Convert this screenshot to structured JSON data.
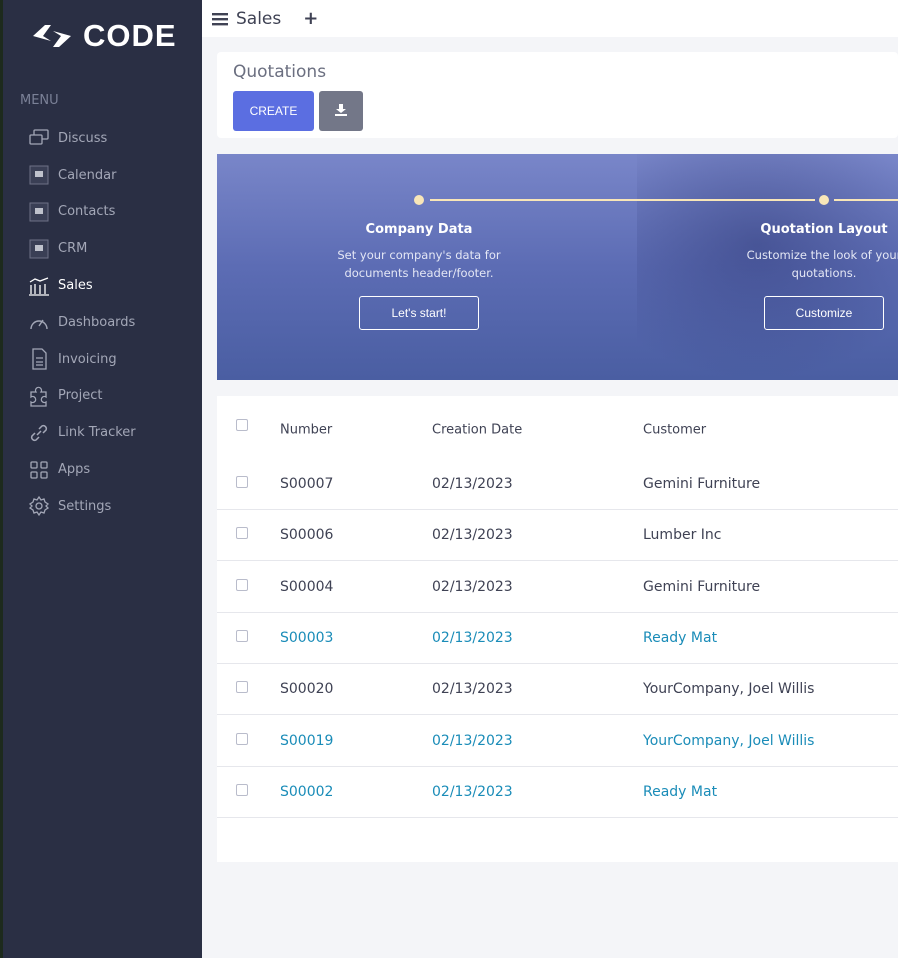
{
  "brand": {
    "logo_text": "CODE"
  },
  "sidebar": {
    "menu_label": "MENU",
    "items": [
      {
        "label": "Discuss",
        "icon": "chat-icon"
      },
      {
        "label": "Calendar",
        "icon": "image-placeholder-icon"
      },
      {
        "label": "Contacts",
        "icon": "image-placeholder-icon"
      },
      {
        "label": "CRM",
        "icon": "image-placeholder-icon"
      },
      {
        "label": "Sales",
        "icon": "chart-bars-icon",
        "active": true
      },
      {
        "label": "Dashboards",
        "icon": "speedometer-icon"
      },
      {
        "label": "Invoicing",
        "icon": "invoice-icon"
      },
      {
        "label": "Project",
        "icon": "puzzle-icon"
      },
      {
        "label": "Link Tracker",
        "icon": "link-icon"
      },
      {
        "label": "Apps",
        "icon": "grid-icon"
      },
      {
        "label": "Settings",
        "icon": "gear-icon"
      }
    ]
  },
  "topbar": {
    "title": "Sales",
    "add": "+"
  },
  "page": {
    "title": "Quotations",
    "create_label": "CREATE",
    "download_icon": "download-icon"
  },
  "banner": {
    "steps": [
      {
        "title": "Company Data",
        "desc": "Set your company's data for documents header/footer.",
        "button": "Let's start!"
      },
      {
        "title": "Quotation Layout",
        "desc": "Customize the look of your quotations.",
        "button": "Customize"
      }
    ]
  },
  "table": {
    "columns": [
      "Number",
      "Creation Date",
      "Customer"
    ],
    "rows": [
      {
        "number": "S00007",
        "date": "02/13/2023",
        "customer": "Gemini Furniture",
        "highlight": false
      },
      {
        "number": "S00006",
        "date": "02/13/2023",
        "customer": "Lumber Inc",
        "highlight": false
      },
      {
        "number": "S00004",
        "date": "02/13/2023",
        "customer": "Gemini Furniture",
        "highlight": false
      },
      {
        "number": "S00003",
        "date": "02/13/2023",
        "customer": "Ready Mat",
        "highlight": true
      },
      {
        "number": "S00020",
        "date": "02/13/2023",
        "customer": "YourCompany, Joel Willis",
        "highlight": false
      },
      {
        "number": "S00019",
        "date": "02/13/2023",
        "customer": "YourCompany, Joel Willis",
        "highlight": true
      },
      {
        "number": "S00002",
        "date": "02/13/2023",
        "customer": "Ready Mat",
        "highlight": true
      }
    ]
  },
  "colors": {
    "sidebar": "#2a2f44",
    "accent": "#5b6ee1",
    "link": "#1a8cb8",
    "banner": "#5c6cb4"
  }
}
